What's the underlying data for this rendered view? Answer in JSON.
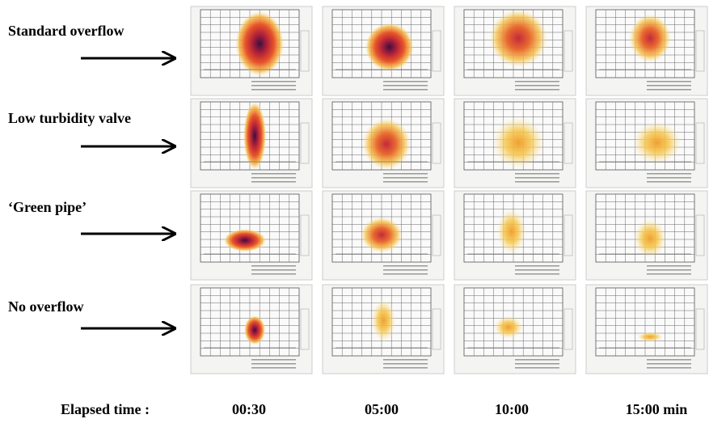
{
  "rows": [
    {
      "label": "Standard overflow"
    },
    {
      "label": "Low turbidity valve"
    },
    {
      "label": "‘Green pipe’"
    },
    {
      "label": "No overflow"
    }
  ],
  "footer": {
    "label": "Elapsed time :",
    "times": [
      "00:30",
      "05:00",
      "10:00",
      "15:00 min"
    ]
  }
}
